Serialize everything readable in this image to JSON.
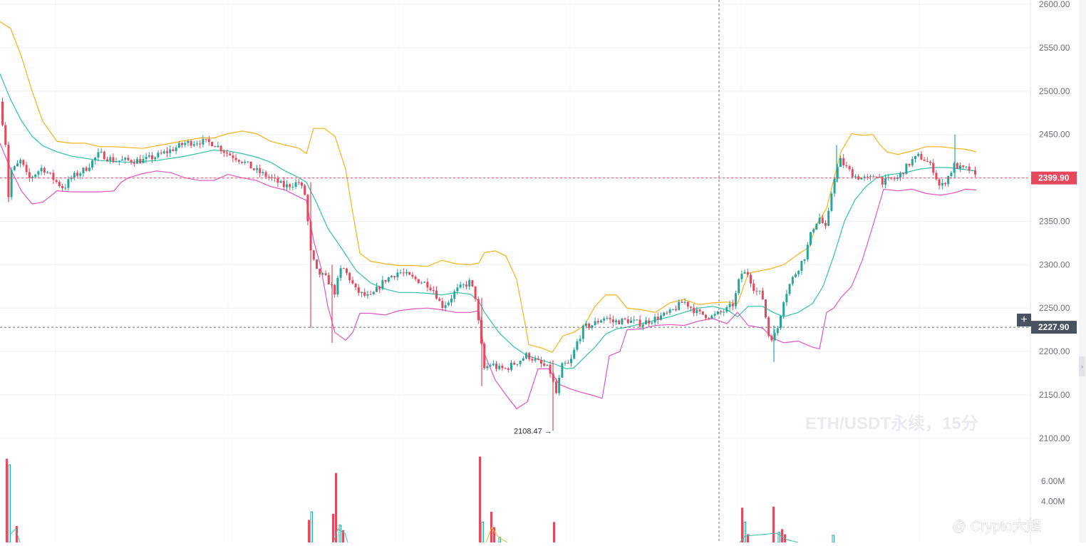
{
  "chart_data": {
    "type": "candlestick",
    "symbol": "ETH/USDT永续，15分",
    "interval": "15m",
    "ylim": [
      2090,
      2605
    ],
    "y_ticks": [
      "2600.00",
      "2550.00",
      "2500.00",
      "2450.00",
      "2400.00",
      "2350.00",
      "2300.00",
      "2250.00",
      "2200.00",
      "2150.00",
      "2100.00"
    ],
    "volume_ticks": [
      "6.00M",
      "4.00M"
    ],
    "volume_max": 9000000,
    "last_price": "2399.90",
    "crosshair_price": "2227.90",
    "low_marker": "2108.47",
    "indicator": "Bollinger Bands",
    "colors": {
      "up": "#26a69a",
      "down": "#e8485c",
      "upper_band": "#f7b21b",
      "middle_band": "#2fc2a8",
      "lower_band": "#e255c4",
      "last_price_tag": "#e8485c",
      "crosshair_tag": "#4a5160"
    },
    "price_anchors": [
      [
        0,
        2488
      ],
      [
        10,
        2430
      ],
      [
        12,
        2372
      ],
      [
        14,
        2408
      ],
      [
        20,
        2410
      ],
      [
        30,
        2420
      ],
      [
        40,
        2398
      ],
      [
        60,
        2412
      ],
      [
        80,
        2395
      ],
      [
        90,
        2388
      ],
      [
        100,
        2400
      ],
      [
        120,
        2410
      ],
      [
        140,
        2428
      ],
      [
        160,
        2420
      ],
      [
        180,
        2420
      ],
      [
        200,
        2420
      ],
      [
        220,
        2425
      ],
      [
        240,
        2432
      ],
      [
        260,
        2440
      ],
      [
        280,
        2442
      ],
      [
        300,
        2440
      ],
      [
        320,
        2428
      ],
      [
        340,
        2420
      ],
      [
        360,
        2408
      ],
      [
        380,
        2400
      ],
      [
        400,
        2390
      ],
      [
        420,
        2395
      ],
      [
        430,
        2378
      ],
      [
        435,
        2318
      ],
      [
        445,
        2292
      ],
      [
        460,
        2283
      ],
      [
        470,
        2268
      ],
      [
        480,
        2298
      ],
      [
        490,
        2286
      ],
      [
        500,
        2270
      ],
      [
        510,
        2265
      ],
      [
        520,
        2262
      ],
      [
        530,
        2272
      ],
      [
        540,
        2282
      ],
      [
        560,
        2292
      ],
      [
        580,
        2284
      ],
      [
        600,
        2278
      ],
      [
        610,
        2270
      ],
      [
        620,
        2252
      ],
      [
        630,
        2258
      ],
      [
        640,
        2270
      ],
      [
        660,
        2280
      ],
      [
        668,
        2262
      ],
      [
        672,
        2232
      ],
      [
        680,
        2180
      ],
      [
        690,
        2186
      ],
      [
        700,
        2180
      ],
      [
        710,
        2180
      ],
      [
        720,
        2185
      ],
      [
        730,
        2190
      ],
      [
        740,
        2196
      ],
      [
        760,
        2185
      ],
      [
        770,
        2180
      ],
      [
        775,
        2172
      ],
      [
        780,
        2148
      ],
      [
        790,
        2185
      ],
      [
        800,
        2185
      ],
      [
        810,
        2210
      ],
      [
        820,
        2228
      ],
      [
        830,
        2230
      ],
      [
        840,
        2235
      ],
      [
        850,
        2240
      ],
      [
        860,
        2234
      ],
      [
        880,
        2236
      ],
      [
        900,
        2232
      ],
      [
        920,
        2238
      ],
      [
        940,
        2244
      ],
      [
        960,
        2258
      ],
      [
        980,
        2244
      ],
      [
        1000,
        2240
      ],
      [
        1020,
        2248
      ],
      [
        1030,
        2255
      ],
      [
        1040,
        2290
      ],
      [
        1050,
        2290
      ],
      [
        1060,
        2270
      ],
      [
        1070,
        2265
      ],
      [
        1080,
        2215
      ],
      [
        1090,
        2220
      ],
      [
        1100,
        2260
      ],
      [
        1110,
        2280
      ],
      [
        1120,
        2295
      ],
      [
        1130,
        2310
      ],
      [
        1140,
        2340
      ],
      [
        1150,
        2355
      ],
      [
        1160,
        2340
      ],
      [
        1170,
        2398
      ],
      [
        1175,
        2410
      ],
      [
        1180,
        2420
      ],
      [
        1190,
        2410
      ],
      [
        1200,
        2402
      ],
      [
        1210,
        2400
      ],
      [
        1220,
        2398
      ],
      [
        1230,
        2405
      ],
      [
        1240,
        2395
      ],
      [
        1250,
        2398
      ],
      [
        1260,
        2400
      ],
      [
        1270,
        2410
      ],
      [
        1280,
        2420
      ],
      [
        1290,
        2425
      ],
      [
        1300,
        2420
      ],
      [
        1310,
        2410
      ],
      [
        1320,
        2388
      ],
      [
        1330,
        2400
      ],
      [
        1340,
        2415
      ],
      [
        1350,
        2410
      ],
      [
        1360,
        2410
      ],
      [
        1370,
        2400
      ]
    ],
    "upper_band": [
      [
        0,
        2580
      ],
      [
        15,
        2572
      ],
      [
        30,
        2540
      ],
      [
        45,
        2500
      ],
      [
        60,
        2465
      ],
      [
        80,
        2442
      ],
      [
        100,
        2440
      ],
      [
        120,
        2440
      ],
      [
        140,
        2436
      ],
      [
        160,
        2436
      ],
      [
        200,
        2434
      ],
      [
        240,
        2440
      ],
      [
        280,
        2446
      ],
      [
        300,
        2446
      ],
      [
        320,
        2451
      ],
      [
        340,
        2454
      ],
      [
        360,
        2451
      ],
      [
        380,
        2442
      ],
      [
        400,
        2438
      ],
      [
        420,
        2434
      ],
      [
        430,
        2428
      ],
      [
        440,
        2457
      ],
      [
        455,
        2457
      ],
      [
        470,
        2448
      ],
      [
        485,
        2410
      ],
      [
        495,
        2360
      ],
      [
        505,
        2313
      ],
      [
        520,
        2304
      ],
      [
        540,
        2301
      ],
      [
        560,
        2299
      ],
      [
        580,
        2299
      ],
      [
        600,
        2298
      ],
      [
        620,
        2305
      ],
      [
        640,
        2301
      ],
      [
        660,
        2300
      ],
      [
        672,
        2302
      ],
      [
        680,
        2314
      ],
      [
        695,
        2316
      ],
      [
        710,
        2310
      ],
      [
        725,
        2283
      ],
      [
        735,
        2240
      ],
      [
        742,
        2208
      ],
      [
        760,
        2204
      ],
      [
        775,
        2199
      ],
      [
        790,
        2218
      ],
      [
        805,
        2222
      ],
      [
        820,
        2230
      ],
      [
        835,
        2252
      ],
      [
        850,
        2265
      ],
      [
        865,
        2265
      ],
      [
        880,
        2250
      ],
      [
        900,
        2248
      ],
      [
        920,
        2245
      ],
      [
        940,
        2256
      ],
      [
        960,
        2260
      ],
      [
        980,
        2254
      ],
      [
        1000,
        2256
      ],
      [
        1020,
        2257
      ],
      [
        1035,
        2255
      ],
      [
        1050,
        2290
      ],
      [
        1060,
        2292
      ],
      [
        1080,
        2295
      ],
      [
        1100,
        2300
      ],
      [
        1120,
        2312
      ],
      [
        1135,
        2320
      ],
      [
        1145,
        2345
      ],
      [
        1160,
        2365
      ],
      [
        1170,
        2398
      ],
      [
        1180,
        2430
      ],
      [
        1195,
        2451
      ],
      [
        1210,
        2449
      ],
      [
        1225,
        2450
      ],
      [
        1235,
        2438
      ],
      [
        1245,
        2430
      ],
      [
        1260,
        2427
      ],
      [
        1280,
        2431
      ],
      [
        1300,
        2436
      ],
      [
        1320,
        2436
      ],
      [
        1340,
        2434
      ],
      [
        1355,
        2433
      ],
      [
        1370,
        2430
      ]
    ],
    "middle_band": [
      [
        0,
        2520
      ],
      [
        15,
        2490
      ],
      [
        30,
        2466
      ],
      [
        45,
        2448
      ],
      [
        60,
        2437
      ],
      [
        80,
        2430
      ],
      [
        100,
        2425
      ],
      [
        140,
        2420
      ],
      [
        180,
        2418
      ],
      [
        220,
        2420
      ],
      [
        260,
        2425
      ],
      [
        300,
        2432
      ],
      [
        320,
        2431
      ],
      [
        340,
        2428
      ],
      [
        360,
        2424
      ],
      [
        380,
        2418
      ],
      [
        400,
        2408
      ],
      [
        420,
        2400
      ],
      [
        430,
        2395
      ],
      [
        445,
        2370
      ],
      [
        460,
        2342
      ],
      [
        480,
        2318
      ],
      [
        500,
        2293
      ],
      [
        520,
        2279
      ],
      [
        540,
        2272
      ],
      [
        560,
        2268
      ],
      [
        580,
        2268
      ],
      [
        600,
        2267
      ],
      [
        620,
        2265
      ],
      [
        640,
        2268
      ],
      [
        660,
        2266
      ],
      [
        672,
        2258
      ],
      [
        680,
        2245
      ],
      [
        700,
        2222
      ],
      [
        720,
        2206
      ],
      [
        740,
        2195
      ],
      [
        760,
        2190
      ],
      [
        780,
        2185
      ],
      [
        795,
        2180
      ],
      [
        805,
        2181
      ],
      [
        820,
        2193
      ],
      [
        835,
        2205
      ],
      [
        850,
        2220
      ],
      [
        865,
        2226
      ],
      [
        880,
        2228
      ],
      [
        900,
        2232
      ],
      [
        920,
        2236
      ],
      [
        940,
        2240
      ],
      [
        960,
        2245
      ],
      [
        980,
        2250
      ],
      [
        1000,
        2252
      ],
      [
        1020,
        2248
      ],
      [
        1035,
        2240
      ],
      [
        1050,
        2252
      ],
      [
        1070,
        2252
      ],
      [
        1085,
        2245
      ],
      [
        1100,
        2240
      ],
      [
        1120,
        2245
      ],
      [
        1140,
        2255
      ],
      [
        1155,
        2275
      ],
      [
        1170,
        2310
      ],
      [
        1185,
        2350
      ],
      [
        1200,
        2375
      ],
      [
        1215,
        2390
      ],
      [
        1230,
        2400
      ],
      [
        1250,
        2404
      ],
      [
        1270,
        2406
      ],
      [
        1290,
        2410
      ],
      [
        1310,
        2412
      ],
      [
        1330,
        2412
      ],
      [
        1350,
        2410
      ],
      [
        1370,
        2408
      ]
    ],
    "lower_band": [
      [
        0,
        2440
      ],
      [
        15,
        2410
      ],
      [
        30,
        2385
      ],
      [
        45,
        2370
      ],
      [
        60,
        2372
      ],
      [
        80,
        2385
      ],
      [
        100,
        2384
      ],
      [
        120,
        2384
      ],
      [
        140,
        2384
      ],
      [
        160,
        2385
      ],
      [
        170,
        2395
      ],
      [
        180,
        2400
      ],
      [
        200,
        2405
      ],
      [
        220,
        2408
      ],
      [
        240,
        2406
      ],
      [
        260,
        2400
      ],
      [
        280,
        2397
      ],
      [
        300,
        2397
      ],
      [
        320,
        2404
      ],
      [
        340,
        2400
      ],
      [
        360,
        2397
      ],
      [
        380,
        2390
      ],
      [
        400,
        2386
      ],
      [
        420,
        2378
      ],
      [
        430,
        2374
      ],
      [
        440,
        2328
      ],
      [
        450,
        2298
      ],
      [
        460,
        2252
      ],
      [
        470,
        2222
      ],
      [
        485,
        2213
      ],
      [
        495,
        2222
      ],
      [
        505,
        2244
      ],
      [
        520,
        2244
      ],
      [
        540,
        2242
      ],
      [
        560,
        2247
      ],
      [
        580,
        2249
      ],
      [
        600,
        2250
      ],
      [
        620,
        2248
      ],
      [
        640,
        2245
      ],
      [
        660,
        2245
      ],
      [
        672,
        2247
      ],
      [
        680,
        2197
      ],
      [
        695,
        2167
      ],
      [
        710,
        2150
      ],
      [
        725,
        2134
      ],
      [
        740,
        2142
      ],
      [
        755,
        2180
      ],
      [
        770,
        2180
      ],
      [
        785,
        2162
      ],
      [
        800,
        2157
      ],
      [
        815,
        2153
      ],
      [
        830,
        2150
      ],
      [
        845,
        2146
      ],
      [
        855,
        2195
      ],
      [
        870,
        2200
      ],
      [
        880,
        2225
      ],
      [
        900,
        2226
      ],
      [
        920,
        2230
      ],
      [
        940,
        2231
      ],
      [
        960,
        2230
      ],
      [
        980,
        2235
      ],
      [
        1000,
        2238
      ],
      [
        1020,
        2232
      ],
      [
        1035,
        2245
      ],
      [
        1050,
        2230
      ],
      [
        1070,
        2227
      ],
      [
        1085,
        2215
      ],
      [
        1100,
        2210
      ],
      [
        1120,
        2212
      ],
      [
        1140,
        2205
      ],
      [
        1150,
        2203
      ],
      [
        1160,
        2245
      ],
      [
        1170,
        2250
      ],
      [
        1180,
        2262
      ],
      [
        1195,
        2275
      ],
      [
        1210,
        2305
      ],
      [
        1225,
        2345
      ],
      [
        1240,
        2387
      ],
      [
        1260,
        2385
      ],
      [
        1280,
        2387
      ],
      [
        1300,
        2382
      ],
      [
        1320,
        2380
      ],
      [
        1340,
        2383
      ],
      [
        1355,
        2387
      ],
      [
        1370,
        2386
      ]
    ],
    "volume_spikes": [
      [
        8,
        8.2
      ],
      [
        12,
        7.6
      ],
      [
        22,
        1.6
      ],
      [
        432,
        2.2
      ],
      [
        436,
        3.0
      ],
      [
        466,
        2.8
      ],
      [
        470,
        6.8
      ],
      [
        476,
        1.7
      ],
      [
        480,
        1.2
      ],
      [
        672,
        8.4
      ],
      [
        676,
        2.0
      ],
      [
        688,
        3.0
      ],
      [
        692,
        1.5
      ],
      [
        700,
        0.5
      ],
      [
        776,
        2.0
      ],
      [
        1040,
        3.4
      ],
      [
        1044,
        2.0
      ],
      [
        1048,
        0.8
      ],
      [
        1084,
        3.5
      ],
      [
        1092,
        1.0
      ],
      [
        1096,
        1.3
      ],
      [
        1100,
        0.8
      ],
      [
        1168,
        0.7
      ]
    ]
  },
  "watermark": "ETH/USDT永续，15分",
  "credit": "@ Crypto大超",
  "plus_label": "+",
  "collapse_label": "›"
}
